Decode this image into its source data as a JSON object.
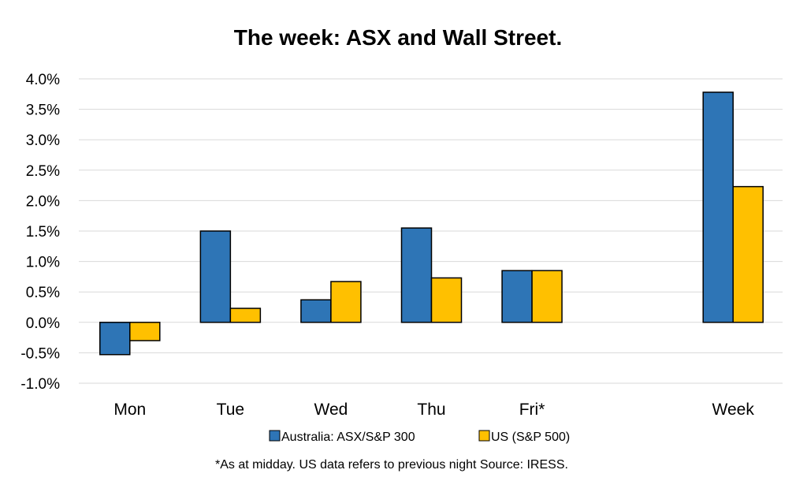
{
  "chart_data": {
    "type": "bar",
    "title": "The week:  ASX and Wall Street.",
    "categories": [
      "Mon",
      "Tue",
      "Wed",
      "Thu",
      "Fri*",
      "",
      "Week"
    ],
    "series": [
      {
        "name": "Australia: ASX/S&P 300",
        "color": "#2E75B6",
        "values": [
          -0.53,
          1.5,
          0.37,
          1.55,
          0.85,
          null,
          3.78
        ]
      },
      {
        "name": "US (S&P 500)",
        "color": "#FFC000",
        "values": [
          -0.3,
          0.23,
          0.67,
          0.73,
          0.85,
          null,
          2.23
        ]
      }
    ],
    "ylim": [
      -1.0,
      4.0
    ],
    "yticks": [
      "4.0%",
      "3.5%",
      "3.0%",
      "2.5%",
      "2.0%",
      "1.5%",
      "1.0%",
      "0.5%",
      "0.0%",
      "-0.5%",
      "-1.0%"
    ],
    "ytick_values": [
      4.0,
      3.5,
      3.0,
      2.5,
      2.0,
      1.5,
      1.0,
      0.5,
      0.0,
      -0.5,
      -1.0
    ],
    "grid": true,
    "legend_position": "bottom",
    "footnote": "*As at midday. US data refers to previous night  Source:  IRESS."
  }
}
